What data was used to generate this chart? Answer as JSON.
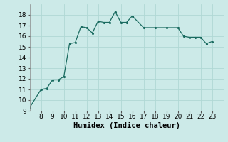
{
  "x": [
    7,
    8,
    8.5,
    9,
    9.5,
    10,
    10.5,
    11,
    11.5,
    12,
    12.5,
    13,
    13.5,
    14,
    14.5,
    15,
    15.5,
    16,
    17,
    18,
    19,
    20,
    20.5,
    21,
    21.5,
    22,
    22.5,
    23
  ],
  "y": [
    9.3,
    11.0,
    11.1,
    11.9,
    11.9,
    12.2,
    15.3,
    15.4,
    16.9,
    16.8,
    16.3,
    17.4,
    17.3,
    17.3,
    18.3,
    17.3,
    17.3,
    17.9,
    16.8,
    16.8,
    16.8,
    16.8,
    16.0,
    15.9,
    15.9,
    15.9,
    15.3,
    15.5
  ],
  "line_color": "#1a6b60",
  "marker_color": "#1a6b60",
  "bg_color": "#cceae8",
  "grid_color": "#b0d8d4",
  "xlabel": "Humidex (Indice chaleur)",
  "ylim": [
    9,
    19
  ],
  "xlim": [
    7,
    24
  ],
  "yticks": [
    9,
    10,
    11,
    12,
    13,
    14,
    15,
    16,
    17,
    18
  ],
  "xticks": [
    8,
    9,
    10,
    11,
    12,
    13,
    14,
    15,
    16,
    17,
    18,
    19,
    20,
    21,
    22,
    23
  ],
  "xlabel_fontsize": 7.5,
  "tick_fontsize": 6.5
}
